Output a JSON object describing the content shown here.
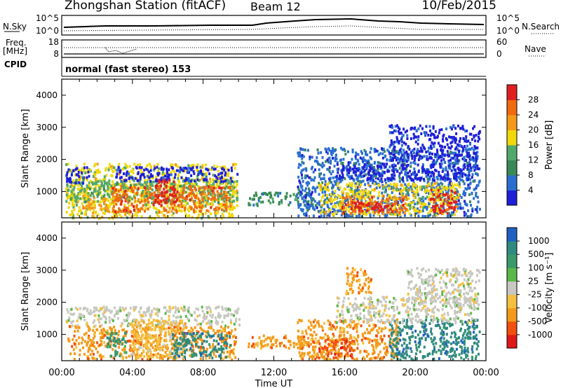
{
  "header": {
    "title": "Zhongshan Station (fitACF)",
    "beam": "Beam 12",
    "date": "10/Feb/2015"
  },
  "aux": {
    "nsky_label": "N.Sky",
    "nsky_ticks": [
      "10^5",
      "10^0"
    ],
    "freq_label_1": "Freq.",
    "freq_label_2": "[MHz]",
    "freq_ticks": [
      "18",
      "8"
    ],
    "cpid_label": "CPID",
    "nsearch_label": "N.Search",
    "nsearch_ticks": [
      "10^5",
      "10^0"
    ],
    "nave_label": "Nave",
    "nave_ticks": [
      "60",
      "0"
    ],
    "cpid_text": "normal (fast stereo) 153"
  },
  "colors": {
    "power_scale": [
      "#1f1fd8",
      "#2a6fd0",
      "#3a8a55",
      "#52a86a",
      "#f0d80a",
      "#f49a1a",
      "#f06a10",
      "#e02020"
    ],
    "velocity_scale": [
      "#e01818",
      "#f05010",
      "#f49a1a",
      "#f5c040",
      "#c8c8c0",
      "#5ab84a",
      "#3a9a6a",
      "#2f8a80",
      "#2060c0"
    ],
    "ground_scatter": "#c8c8c0"
  },
  "chart_data": [
    {
      "type": "heatmap",
      "name": "power",
      "xlabel": "",
      "ylabel": "Slant Range [km]",
      "ylim": [
        180,
        4500
      ],
      "yticks": [
        "1000",
        "2000",
        "3000",
        "4000"
      ],
      "colorbar_label": "Power [dB]",
      "colorbar_ticks": [
        "4",
        "8",
        "12",
        "16",
        "20",
        "24",
        "28"
      ],
      "colorbar_range": [
        0,
        30
      ],
      "bands": [
        {
          "t0": 0.2,
          "t1": 9.9,
          "r0": 200,
          "r1": 1900,
          "c": 4
        },
        {
          "t0": 0.2,
          "t1": 9.9,
          "r0": 700,
          "r1": 1400,
          "c": 3
        },
        {
          "t0": 0.2,
          "t1": 1.5,
          "r0": 1300,
          "r1": 1800,
          "c": 0
        },
        {
          "t0": 3.0,
          "t1": 9.9,
          "r0": 1350,
          "r1": 1800,
          "c": 0
        },
        {
          "t0": 2.8,
          "t1": 9.5,
          "r0": 400,
          "r1": 1200,
          "c": 6
        },
        {
          "t0": 5.2,
          "t1": 6.4,
          "r0": 600,
          "r1": 1400,
          "c": 7
        },
        {
          "t0": 1.0,
          "t1": 2.5,
          "r0": 500,
          "r1": 900,
          "c": 5
        },
        {
          "t0": 10.5,
          "t1": 14.2,
          "r0": 600,
          "r1": 1000,
          "c": 2
        },
        {
          "t0": 13.3,
          "t1": 23.6,
          "r0": 250,
          "r1": 2400,
          "c": 1
        },
        {
          "t0": 15.5,
          "t1": 23.6,
          "r0": 1400,
          "r1": 1900,
          "c": 0
        },
        {
          "t0": 14.5,
          "t1": 22.5,
          "r0": 300,
          "r1": 1300,
          "c": 4
        },
        {
          "t0": 15.8,
          "t1": 19.5,
          "r0": 350,
          "r1": 900,
          "c": 6
        },
        {
          "t0": 16.2,
          "t1": 18.9,
          "r0": 400,
          "r1": 700,
          "c": 7
        },
        {
          "t0": 20.8,
          "t1": 22.3,
          "r0": 350,
          "r1": 1100,
          "c": 7
        },
        {
          "t0": 18.5,
          "t1": 23.6,
          "r0": 2000,
          "r1": 3100,
          "c": 0
        }
      ]
    },
    {
      "type": "heatmap",
      "name": "velocity",
      "xlabel": "Time UT",
      "ylabel": "Slant Range [km]",
      "ylim": [
        180,
        4500
      ],
      "yticks": [
        "1000",
        "2000",
        "3000",
        "4000"
      ],
      "xticks": [
        "00:00",
        "04:00",
        "08:00",
        "12:00",
        "16:00",
        "20:00",
        "00:00"
      ],
      "xlim_hours": [
        0,
        24
      ],
      "colorbar_label": "Velocity [m s⁻¹]",
      "colorbar_ticks": [
        "-1000",
        "-500",
        "-100",
        "-25",
        "25",
        "100",
        "500",
        "1000"
      ],
      "colorbar_range": [
        -1200,
        1200
      ],
      "bands": [
        {
          "t0": 0.2,
          "t1": 10.0,
          "r0": 1300,
          "r1": 1900,
          "c": 4
        },
        {
          "t0": 0.3,
          "t1": 9.8,
          "r0": 250,
          "r1": 1300,
          "c": 2
        },
        {
          "t0": 3.8,
          "t1": 7.0,
          "r0": 300,
          "r1": 1500,
          "c": 3
        },
        {
          "t0": 6.2,
          "t1": 9.5,
          "r0": 300,
          "r1": 1100,
          "c": 7
        },
        {
          "t0": 2.5,
          "t1": 3.6,
          "r0": 300,
          "r1": 1100,
          "c": 6
        },
        {
          "t0": 10.5,
          "t1": 14.2,
          "r0": 600,
          "r1": 1000,
          "c": 2
        },
        {
          "t0": 13.3,
          "t1": 19.0,
          "r0": 250,
          "r1": 1500,
          "c": 2
        },
        {
          "t0": 14.5,
          "t1": 16.5,
          "r0": 300,
          "r1": 900,
          "c": 1
        },
        {
          "t0": 18.5,
          "t1": 23.6,
          "r0": 250,
          "r1": 1500,
          "c": 7
        },
        {
          "t0": 15.5,
          "t1": 23.6,
          "r0": 1400,
          "r1": 2200,
          "c": 4
        },
        {
          "t0": 19.5,
          "t1": 23.6,
          "r0": 2000,
          "r1": 3100,
          "c": 4
        },
        {
          "t0": 16.0,
          "t1": 17.5,
          "r0": 2300,
          "r1": 3100,
          "c": 2
        }
      ]
    }
  ]
}
